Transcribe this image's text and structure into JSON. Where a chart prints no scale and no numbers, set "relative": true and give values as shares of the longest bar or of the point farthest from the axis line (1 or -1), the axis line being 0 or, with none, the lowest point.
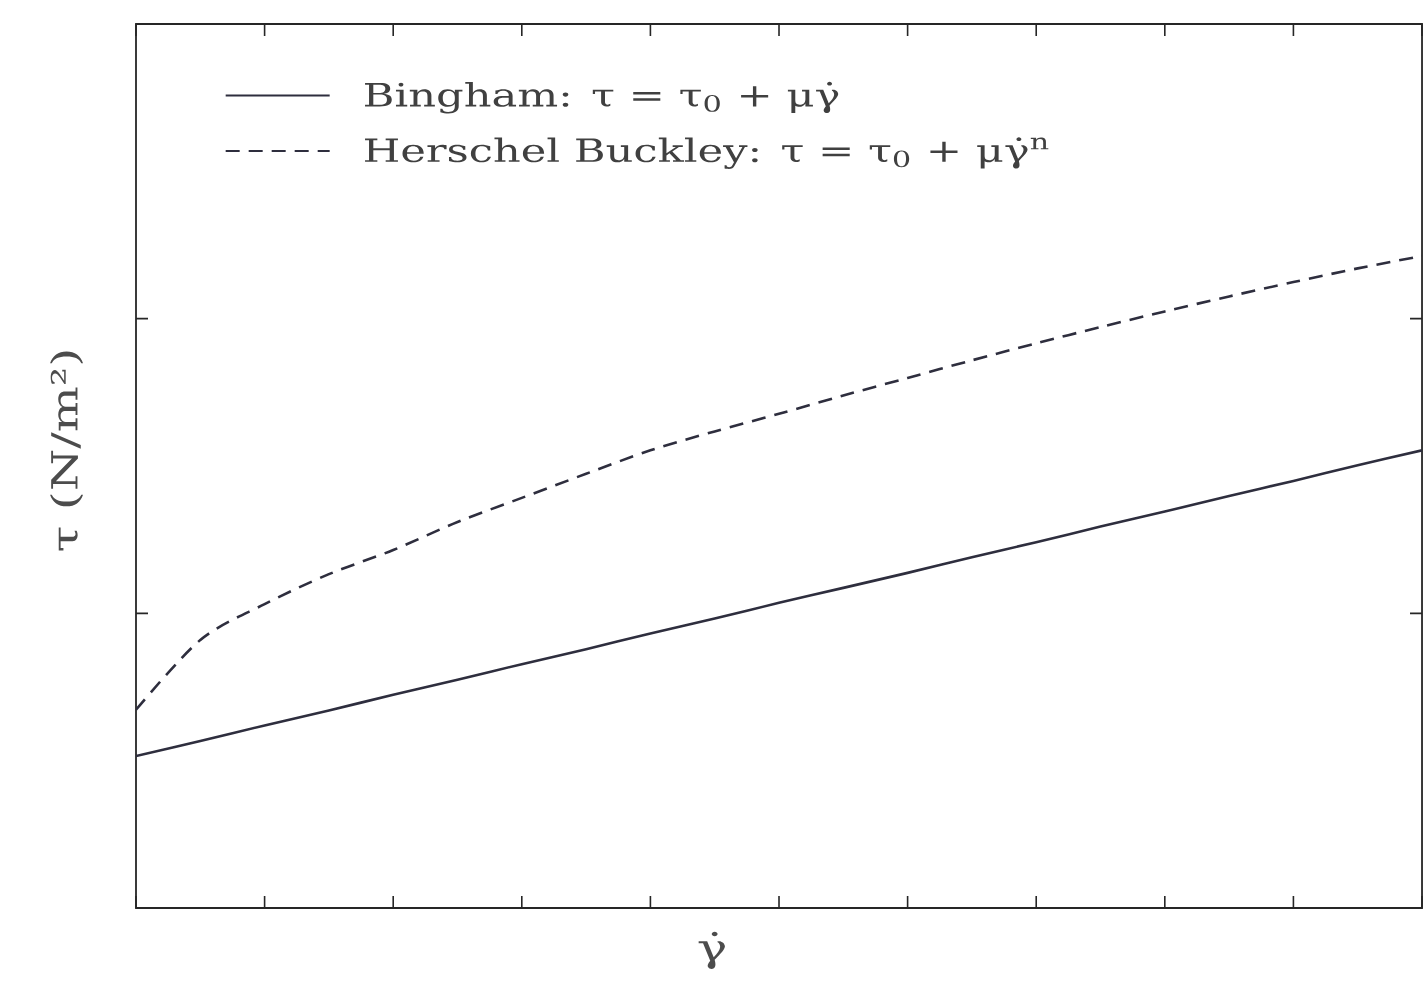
{
  "chart_data": {
    "type": "line",
    "relative": true,
    "xlabel": "γ̇",
    "ylabel": "τ (N/m²)",
    "categories": [
      null,
      null,
      null,
      null,
      null,
      null,
      null,
      null,
      null,
      null,
      null,
      null,
      null,
      null,
      null,
      null,
      null,
      null,
      null,
      null,
      null
    ],
    "series": [
      {
        "name": "Bingham: τ = τ$_{0}$ + μγ̇",
        "color": "#2e2e3e",
        "line_style": "solid",
        "values": [
          0.233,
          0.256,
          0.28,
          0.303,
          0.327,
          0.35,
          0.374,
          0.397,
          0.421,
          0.444,
          0.468,
          0.491,
          0.514,
          0.538,
          0.561,
          0.585,
          0.608,
          0.632,
          0.655,
          0.679,
          0.702
        ]
      },
      {
        "name": "Herschel Buckley: τ = τ$_{0}$ + μγ̇$^{n}$",
        "color": "#2e2e3e",
        "line_style": "dashed",
        "values": [
          0.304,
          0.411,
          0.466,
          0.512,
          0.549,
          0.592,
          0.629,
          0.666,
          0.702,
          0.731,
          0.758,
          0.786,
          0.813,
          0.84,
          0.866,
          0.891,
          0.915,
          0.938,
          0.96,
          0.981,
          1
        ]
      }
    ],
    "legend": "top left",
    "grid": false,
    "marker": "none"
  }
}
